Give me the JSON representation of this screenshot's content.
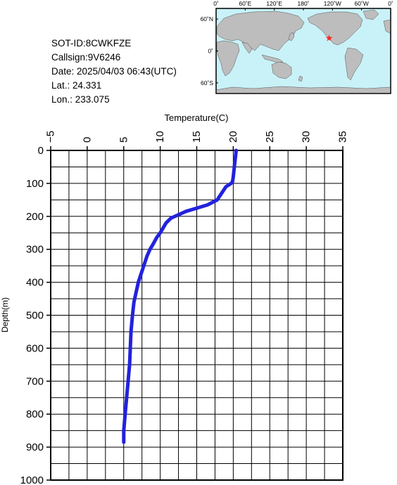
{
  "info": {
    "sot_id": "SOT-ID:8CWKFZE",
    "callsign": "Callsign:9V6246",
    "date": "Date:  2025/04/03 06:43(UTC)",
    "lat": "Lat.:   24.331",
    "lon": "Lon.:  233.075"
  },
  "map": {
    "lon_labels": [
      "0˚",
      "60˚E",
      "120˚E",
      "180˚",
      "120˚W",
      "60˚W",
      "0˚"
    ],
    "lat_labels": [
      "60˚N",
      "0˚",
      "60˚S"
    ],
    "marker": {
      "lon": 233.075,
      "lat": 24.331
    },
    "colors": {
      "ocean": "#c8f2f8",
      "land": "#bdbdbd",
      "marker": "#ff2020"
    }
  },
  "chart_data": {
    "type": "line",
    "xlabel": "Temperature(C)",
    "ylabel": "Depth(m)",
    "xlim": [
      -5,
      35
    ],
    "ylim": [
      0,
      1000
    ],
    "y_inverted": true,
    "x_axis_position": "top",
    "x_ticks": [
      -5,
      0,
      5,
      10,
      15,
      20,
      25,
      30,
      35
    ],
    "y_ticks": [
      0,
      100,
      200,
      300,
      400,
      500,
      600,
      700,
      800,
      900,
      1000
    ],
    "grid": true,
    "line_color": "#2222dd",
    "series": [
      {
        "temperature": [
          20.4,
          20.3,
          20.2,
          20.1,
          20.0,
          19.9,
          19.7,
          19.5,
          19.0,
          18.7,
          18.4,
          17.8,
          16.5,
          15.0,
          13.5,
          12.5,
          11.5,
          10.8,
          10.4,
          10.0,
          9.5,
          9.0,
          8.6,
          8.2,
          7.9,
          7.6,
          7.3,
          7.0,
          6.7,
          6.4,
          6.2,
          6.0,
          5.9,
          5.8,
          5.6,
          5.4,
          5.2,
          5.0,
          5.0
        ],
        "depth": [
          0,
          20,
          40,
          60,
          80,
          95,
          100,
          103,
          110,
          120,
          130,
          150,
          165,
          175,
          185,
          195,
          205,
          220,
          235,
          250,
          265,
          285,
          300,
          320,
          340,
          360,
          380,
          400,
          430,
          460,
          500,
          550,
          600,
          650,
          700,
          750,
          800,
          850,
          885
        ]
      }
    ]
  }
}
